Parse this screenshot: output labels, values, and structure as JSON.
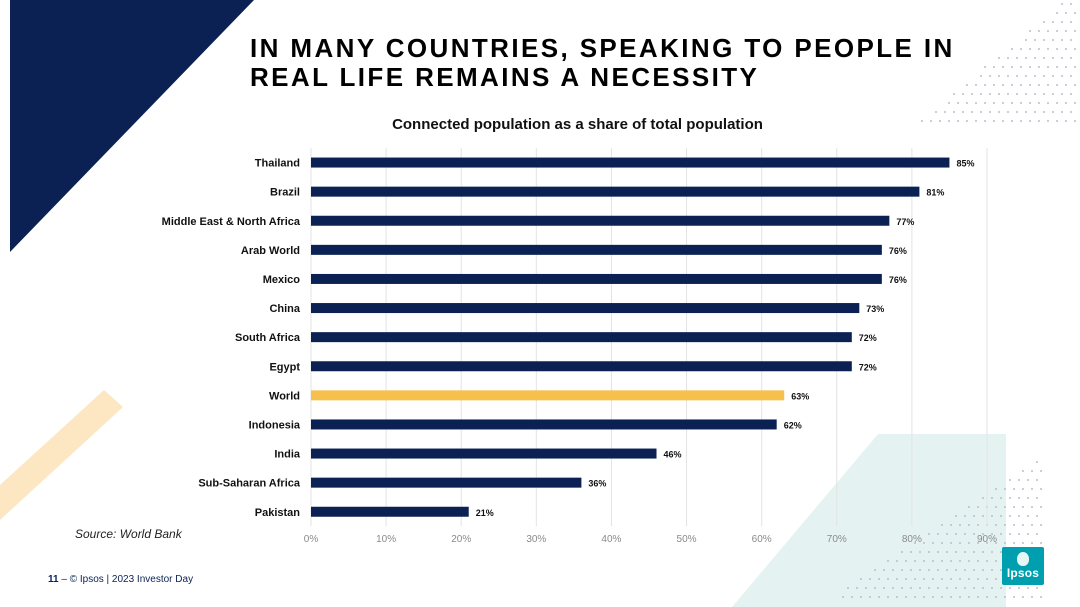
{
  "slide": {
    "title_lines": [
      "IN MANY COUNTRIES, SPEAKING TO PEOPLE IN",
      "REAL LIFE REMAINS A NECESSITY"
    ],
    "source": "Source: World Bank",
    "page_number": "11",
    "footer_text": "© Ipsos | 2023 Investor Day",
    "logo_text": "Ipsos"
  },
  "colors": {
    "navy": "#0b2154",
    "highlight": "#f6c04d",
    "grid": "#e3e3e3",
    "tick": "#8a8a8a",
    "peach": "#fde7c2",
    "mint": "#e4f3f1"
  },
  "chart_data": {
    "type": "bar",
    "orientation": "horizontal",
    "title": "Connected population as a share of total population",
    "categories": [
      "Thailand",
      "Brazil",
      "Middle East & North Africa",
      "Arab World",
      "Mexico",
      "China",
      "South Africa",
      "Egypt",
      "World",
      "Indonesia",
      "India",
      "Sub-Saharan Africa",
      "Pakistan"
    ],
    "values": [
      85,
      81,
      77,
      76,
      76,
      73,
      72,
      72,
      63,
      62,
      46,
      36,
      21
    ],
    "labels": [
      "85%",
      "81%",
      "77%",
      "76%",
      "76%",
      "73%",
      "72%",
      "72%",
      "63%",
      "62%",
      "46%",
      "36%",
      "21%"
    ],
    "highlight_category": "World",
    "xlim": [
      0,
      90
    ],
    "xticks": [
      0,
      10,
      20,
      30,
      40,
      50,
      60,
      70,
      80,
      90
    ],
    "xtick_labels": [
      "0%",
      "10%",
      "20%",
      "30%",
      "40%",
      "50%",
      "60%",
      "70%",
      "80%",
      "90%"
    ],
    "grid": true,
    "legend": "none"
  }
}
